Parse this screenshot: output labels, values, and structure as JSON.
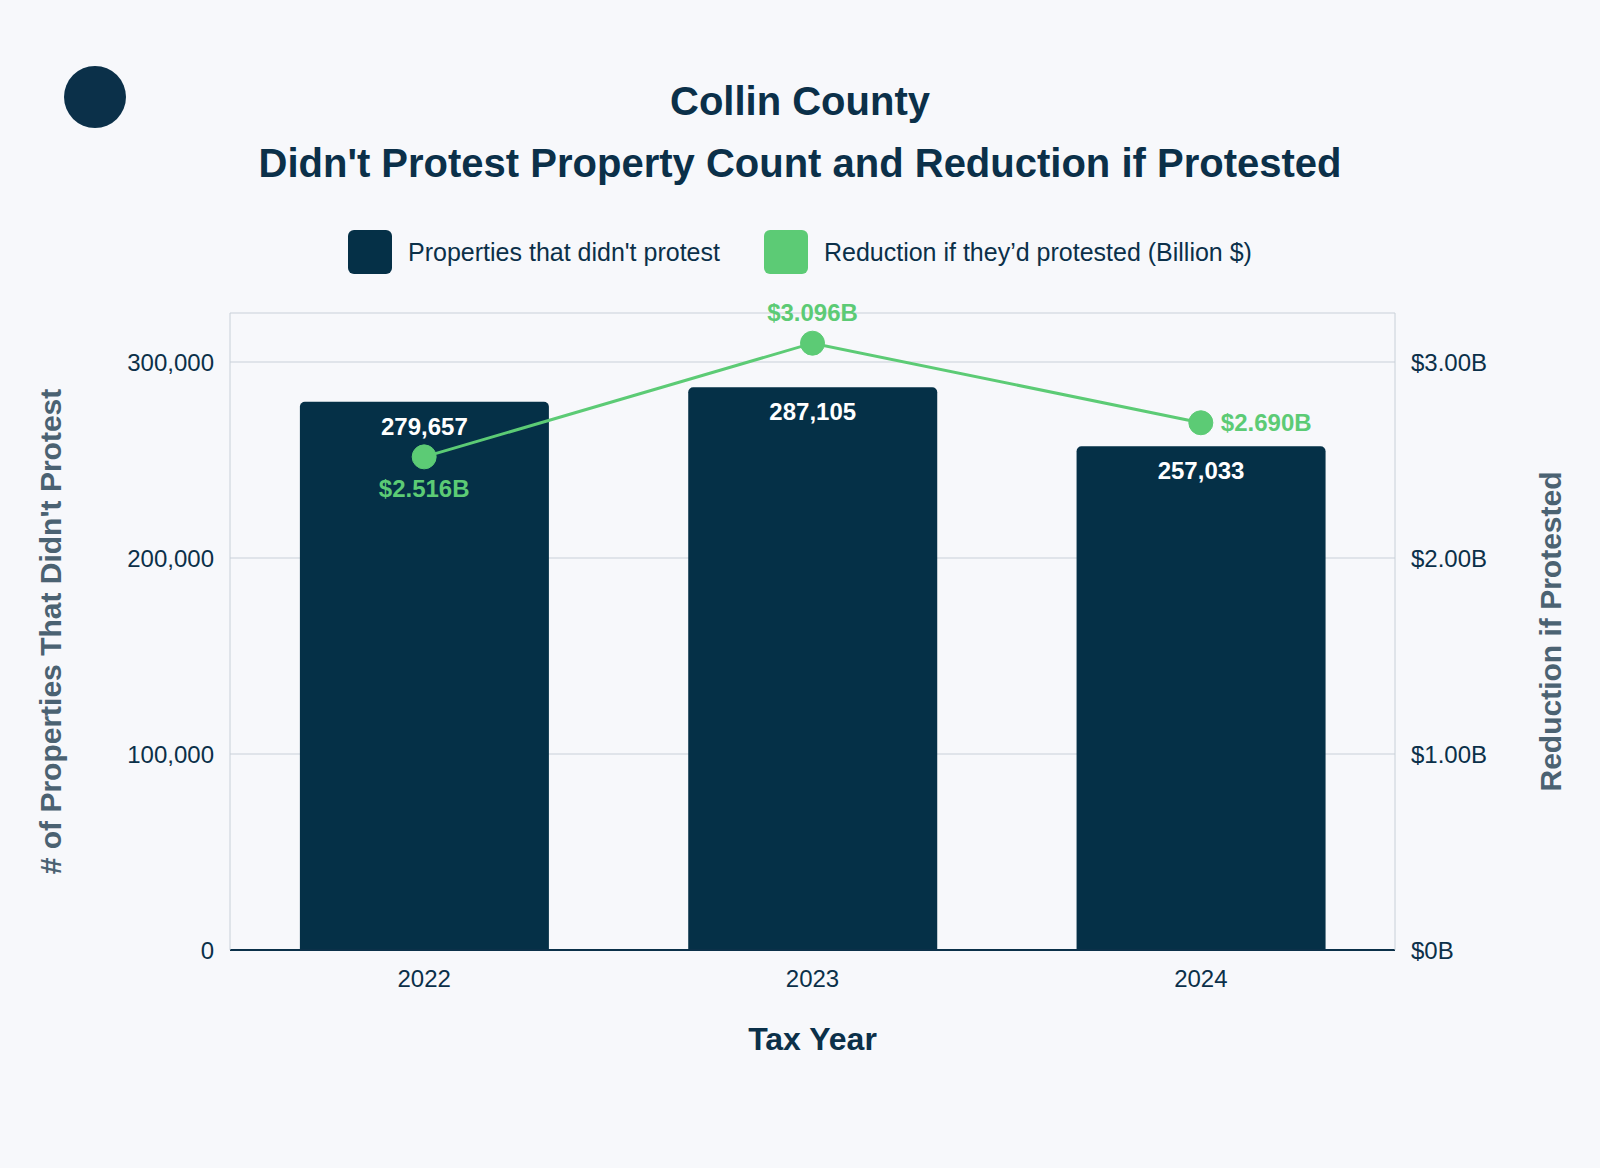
{
  "chart_data": {
    "type": "bar",
    "title": "Collin County",
    "subtitle": "Didn't Protest Property Count and Reduction if Protested",
    "x_label": "Tax Year",
    "y_label": "# of Properties That Didn't Protest",
    "y2_label": "Reduction if Protested",
    "categories": [
      "2022",
      "2023",
      "2024"
    ],
    "series": [
      {
        "name": "Properties that didn't protest",
        "type": "bar",
        "color": "#053047",
        "values": [
          279657,
          287105,
          257033
        ],
        "value_labels": [
          "279,657",
          "287,105",
          "257,033"
        ]
      },
      {
        "name": "Reduction if they’d protested (Billion $)",
        "type": "line",
        "axis": "y2",
        "color": "#5ccb75",
        "marker": "circle",
        "values": [
          2.516,
          3.096,
          2.69
        ],
        "value_labels": [
          "$2.516B",
          "$3.096B",
          "$2.690B"
        ]
      }
    ],
    "ylim": [
      0,
      325000
    ],
    "yticks": [
      0,
      {
        "value": 100000,
        "label": "100,000"
      },
      {
        "value": 200000,
        "label": "200,000"
      },
      {
        "value": 300000,
        "label": "300,000"
      }
    ],
    "y2lim": [
      0,
      3.25
    ],
    "y2ticks": [
      {
        "value": 0,
        "label": "$0B"
      },
      {
        "value": 1,
        "label": "$1.00B"
      },
      {
        "value": 2,
        "label": "$2.00B"
      },
      {
        "value": 3,
        "label": "$3.00B"
      }
    ],
    "grid": true,
    "data_labels": true,
    "legend": "top"
  }
}
